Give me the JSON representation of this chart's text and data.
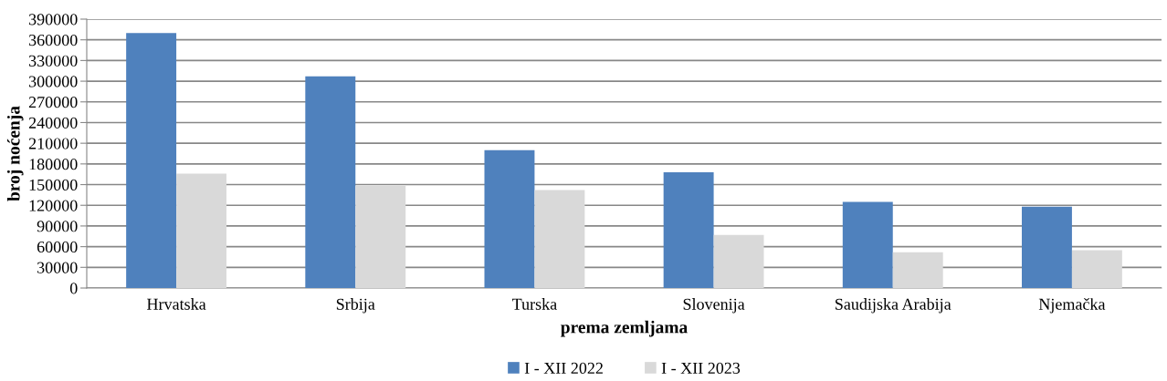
{
  "chart_data": {
    "type": "bar",
    "xlabel": "prema zemljama",
    "ylabel": "broj noćenja",
    "categories": [
      "Hrvatska",
      "Srbija",
      "Turska",
      "Slovenija",
      "Saudijska Arabija",
      "Njemačka"
    ],
    "series": [
      {
        "name": "I - XII 2022",
        "color": "#4f81bd",
        "values": [
          370000,
          307000,
          200000,
          168000,
          125000,
          118000
        ]
      },
      {
        "name": "I - XII 2023",
        "color": "#d9d9d9",
        "values": [
          166000,
          148000,
          142000,
          77000,
          52000,
          55000
        ]
      }
    ],
    "ylim": [
      0,
      390000
    ],
    "yticks": [
      0,
      30000,
      60000,
      90000,
      120000,
      150000,
      180000,
      210000,
      240000,
      270000,
      300000,
      330000,
      360000,
      390000
    ],
    "grid": "y",
    "legend": "bottom"
  }
}
